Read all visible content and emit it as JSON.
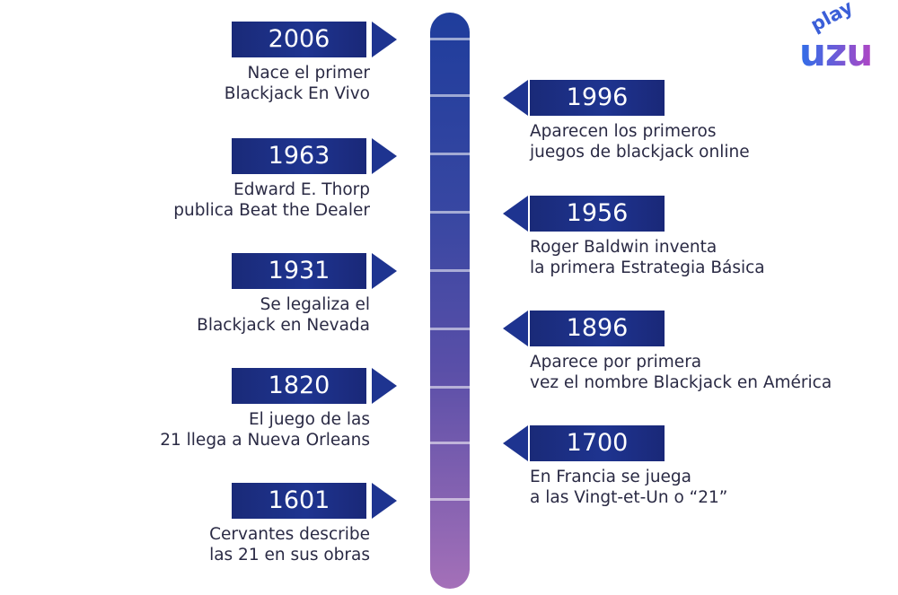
{
  "brand": {
    "play": "play",
    "name": "uzu"
  },
  "colors": {
    "badge": "#1e3490",
    "spine_top": "#1f3d9c",
    "spine_bottom": "#a470b8"
  },
  "left_events": [
    {
      "year": "2006",
      "lines": [
        "Nace el primer",
        "Blackjack En Vivo"
      ]
    },
    {
      "year": "1963",
      "lines": [
        "Edward E. Thorp",
        "publica Beat the Dealer"
      ]
    },
    {
      "year": "1931",
      "lines": [
        "Se legaliza el",
        "Blackjack en Nevada"
      ]
    },
    {
      "year": "1820",
      "lines": [
        "El juego de las",
        "21 llega a Nueva Orleans"
      ]
    },
    {
      "year": "1601",
      "lines": [
        "Cervantes describe",
        "las 21 en sus obras"
      ]
    }
  ],
  "right_events": [
    {
      "year": "1996",
      "lines": [
        "Aparecen los primeros",
        "juegos de blackjack online"
      ]
    },
    {
      "year": "1956",
      "lines": [
        "Roger Baldwin inventa",
        "la primera Estrategia Básica"
      ]
    },
    {
      "year": "1896",
      "lines": [
        "Aparece por primera",
        "vez el nombre Blackjack en América"
      ]
    },
    {
      "year": "1700",
      "lines": [
        "En Francia se juega",
        "a las Vingt-et-Un o “21”"
      ]
    }
  ]
}
